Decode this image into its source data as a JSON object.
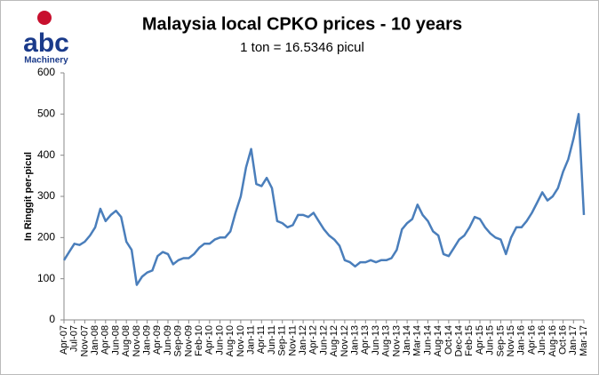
{
  "logo": {
    "name": "abc",
    "tagline": "Machinery"
  },
  "chart_data": {
    "type": "line",
    "title": "Malaysia local CPKO prices - 10 years",
    "subtitle": "1 ton = 16.5346 picul",
    "y_label": "In Ringgit per-picul",
    "categories": [
      "Apr-07",
      null,
      "Jul-07",
      null,
      "Nov-07",
      null,
      "Jan-08",
      null,
      "Apr-08",
      null,
      "Jun-08",
      null,
      "Aug-08",
      null,
      "Nov-08",
      null,
      "Jan-09",
      null,
      "Apr-09",
      null,
      "Jun-09",
      null,
      "Sep-09",
      null,
      "Nov-09",
      null,
      "Feb-10",
      null,
      "Apr-10",
      null,
      "Jun-10",
      null,
      "Aug-10",
      null,
      "Nov-10",
      null,
      "Jan-11",
      null,
      "Apr-11",
      null,
      "Jun-11",
      null,
      "Sep-11",
      null,
      "Nov-11",
      null,
      "Jan-12",
      null,
      "Apr-12",
      null,
      "Jun-12",
      null,
      "Aug-12",
      null,
      "Nov-12",
      null,
      "Jan-13",
      null,
      "Apr-13",
      null,
      "Jun-13",
      null,
      "Aug-13",
      null,
      "Nov-13",
      null,
      "Jan-14",
      null,
      "Mar-14",
      null,
      "Jun-14",
      null,
      "Aug-14",
      null,
      "Oct-14",
      null,
      "Dec-14",
      null,
      "Feb-15",
      null,
      "Apr-15",
      null,
      "Jun-15",
      null,
      "Sep-15",
      null,
      "Nov-15",
      null,
      "Jan-16",
      null,
      "Apr-16",
      null,
      "Jun-16",
      null,
      "Aug-16",
      null,
      "Oct-16",
      null,
      "Jan-17",
      null,
      "Mar-17"
    ],
    "series": [
      {
        "name": "CPKO price",
        "color": "#4a7ebb",
        "values": [
          145,
          165,
          185,
          182,
          190,
          205,
          225,
          270,
          240,
          255,
          265,
          250,
          190,
          170,
          85,
          105,
          115,
          120,
          155,
          165,
          160,
          135,
          145,
          150,
          150,
          160,
          175,
          185,
          185,
          195,
          200,
          200,
          215,
          260,
          300,
          370,
          415,
          330,
          325,
          345,
          320,
          240,
          235,
          225,
          230,
          255,
          255,
          250,
          260,
          240,
          220,
          205,
          195,
          180,
          145,
          140,
          130,
          140,
          140,
          145,
          140,
          145,
          145,
          150,
          170,
          220,
          235,
          245,
          280,
          255,
          240,
          215,
          205,
          160,
          155,
          175,
          195,
          205,
          225,
          250,
          245,
          225,
          210,
          200,
          195,
          160,
          200,
          225,
          225,
          240,
          260,
          285,
          310,
          290,
          300,
          320,
          360,
          390,
          440,
          500,
          255
        ]
      }
    ],
    "ylim": [
      0,
      600
    ],
    "yticks": [
      0,
      100,
      200,
      300,
      400,
      500,
      600
    ],
    "grid": false
  }
}
